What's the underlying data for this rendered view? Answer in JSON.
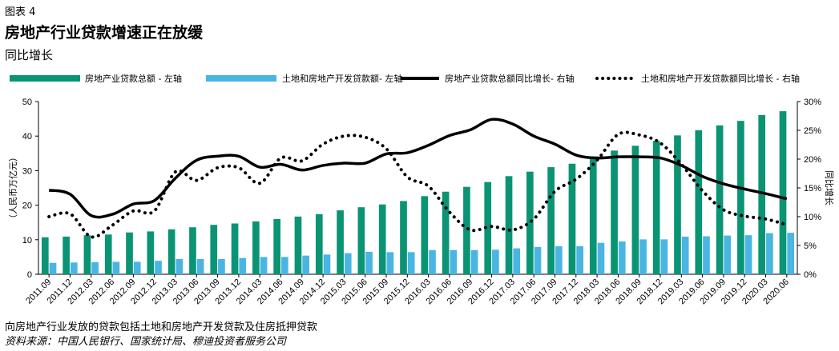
{
  "figure_label": "图表 4",
  "title": "房地产行业贷款增速正在放缓",
  "subtitle": "同比增长",
  "note": "向房地产行业发放的贷款包括土地和房地产开发贷款及住房抵押贷款",
  "source": "资料来源：中国人民银行、国家统计局、穆迪投资者服务公司",
  "colors": {
    "bar_total": "#0a9474",
    "bar_land": "#4ab5e3",
    "line_total": "#000000",
    "line_land": "#000000"
  },
  "chart_data": {
    "type": "bar",
    "categories": [
      "2011.09",
      "2011.12",
      "2012.03",
      "2012.06",
      "2012.09",
      "2012.12",
      "2013.03",
      "2013.06",
      "2013.09",
      "2013.12",
      "2014.03",
      "2014.06",
      "2014.09",
      "2014.12",
      "2015.03",
      "2015.06",
      "2015.09",
      "2015.12",
      "2016.03",
      "2016.06",
      "2016.09",
      "2016.12",
      "2017.03",
      "2017.06",
      "2017.09",
      "2017.12",
      "2018.03",
      "2018.06",
      "2018.09",
      "2018.12",
      "2019.03",
      "2019.06",
      "2019.09",
      "2019.12",
      "2020.03",
      "2020.06"
    ],
    "x_tick_labels": [
      "2011.09",
      "2011.12",
      "2012.03",
      "2012.06",
      "2012.09",
      "2012.12",
      "2013.03",
      "2013.06",
      "2013.09",
      "2013.12",
      "2014.03",
      "2014.06",
      "2014.09",
      "2014.12",
      "2015.03",
      "2015.06",
      "2015.09",
      "2015.12",
      "2016.03",
      "2016.06",
      "2016.09",
      "2016.12",
      "2017.03",
      "2017.06",
      "2017.09",
      "2017.12",
      "2018.03",
      "2018.06",
      "2018.09",
      "2018.12",
      "2019.03",
      "2019.06",
      "2019.09",
      "2019.12",
      "2020.03",
      "2020.06"
    ],
    "series": [
      {
        "name": "房地产业贷款总额  - 左轴",
        "kind": "bar",
        "axis": "left",
        "values": [
          10.7,
          10.9,
          11.3,
          11.5,
          12.1,
          12.4,
          13.0,
          13.6,
          14.3,
          14.7,
          15.3,
          16.0,
          16.7,
          17.4,
          18.5,
          19.4,
          20.2,
          21.2,
          22.6,
          23.9,
          25.3,
          26.7,
          28.4,
          29.7,
          31.0,
          32.0,
          34.0,
          35.8,
          37.2,
          38.6,
          40.2,
          41.7,
          43.1,
          44.4,
          46.1,
          47.2
        ]
      },
      {
        "name": "土地和房地产开发贷款额- 左轴",
        "kind": "bar",
        "axis": "left",
        "values": [
          3.3,
          3.4,
          3.5,
          3.6,
          3.6,
          3.9,
          4.4,
          4.4,
          4.4,
          4.7,
          5.0,
          5.0,
          5.4,
          5.7,
          6.1,
          6.5,
          6.4,
          6.4,
          7.0,
          7.0,
          7.0,
          7.1,
          7.5,
          7.9,
          8.1,
          8.1,
          9.1,
          9.5,
          10.1,
          10.1,
          10.9,
          11.0,
          11.2,
          11.3,
          11.9,
          12.0
        ]
      },
      {
        "name": "房地产业贷款总额同比增长- 右轴",
        "kind": "line",
        "axis": "right",
        "values": [
          14.6,
          13.9,
          10.2,
          10.4,
          12.2,
          12.8,
          16.7,
          19.8,
          20.5,
          20.5,
          18.6,
          19.1,
          18.1,
          18.9,
          19.3,
          19.3,
          20.9,
          21.1,
          22.4,
          24.1,
          25.1,
          26.9,
          26.1,
          24.0,
          22.6,
          20.7,
          20.2,
          20.4,
          20.4,
          20.2,
          18.9,
          17.0,
          15.7,
          14.8,
          14.0,
          13.1
        ]
      },
      {
        "name": "土地和房地产开发贷款额同比增长  - 右轴",
        "kind": "dotted",
        "axis": "right",
        "values": [
          10.0,
          10.5,
          6.5,
          8.5,
          11.0,
          11.0,
          17.8,
          16.3,
          18.5,
          18.5,
          15.8,
          20.2,
          19.7,
          22.6,
          24.0,
          23.8,
          21.8,
          16.9,
          15.3,
          10.8,
          7.7,
          8.3,
          7.7,
          9.6,
          14.4,
          16.5,
          19.8,
          24.3,
          24.2,
          22.8,
          19.1,
          14.5,
          11.2,
          10.1,
          9.6,
          8.6
        ]
      }
    ],
    "ylabel_left": "（人民币万亿元）",
    "ylabel_right": "同比增长",
    "ylim_left": [
      0,
      50
    ],
    "ylim_right": [
      0,
      30
    ],
    "yticks_left": [
      "0",
      "10",
      "20",
      "30",
      "40",
      "50"
    ],
    "yticks_right": [
      "0%",
      "5%",
      "10%",
      "15%",
      "20%",
      "25%",
      "30%"
    ],
    "grid": false,
    "legend": "top"
  }
}
